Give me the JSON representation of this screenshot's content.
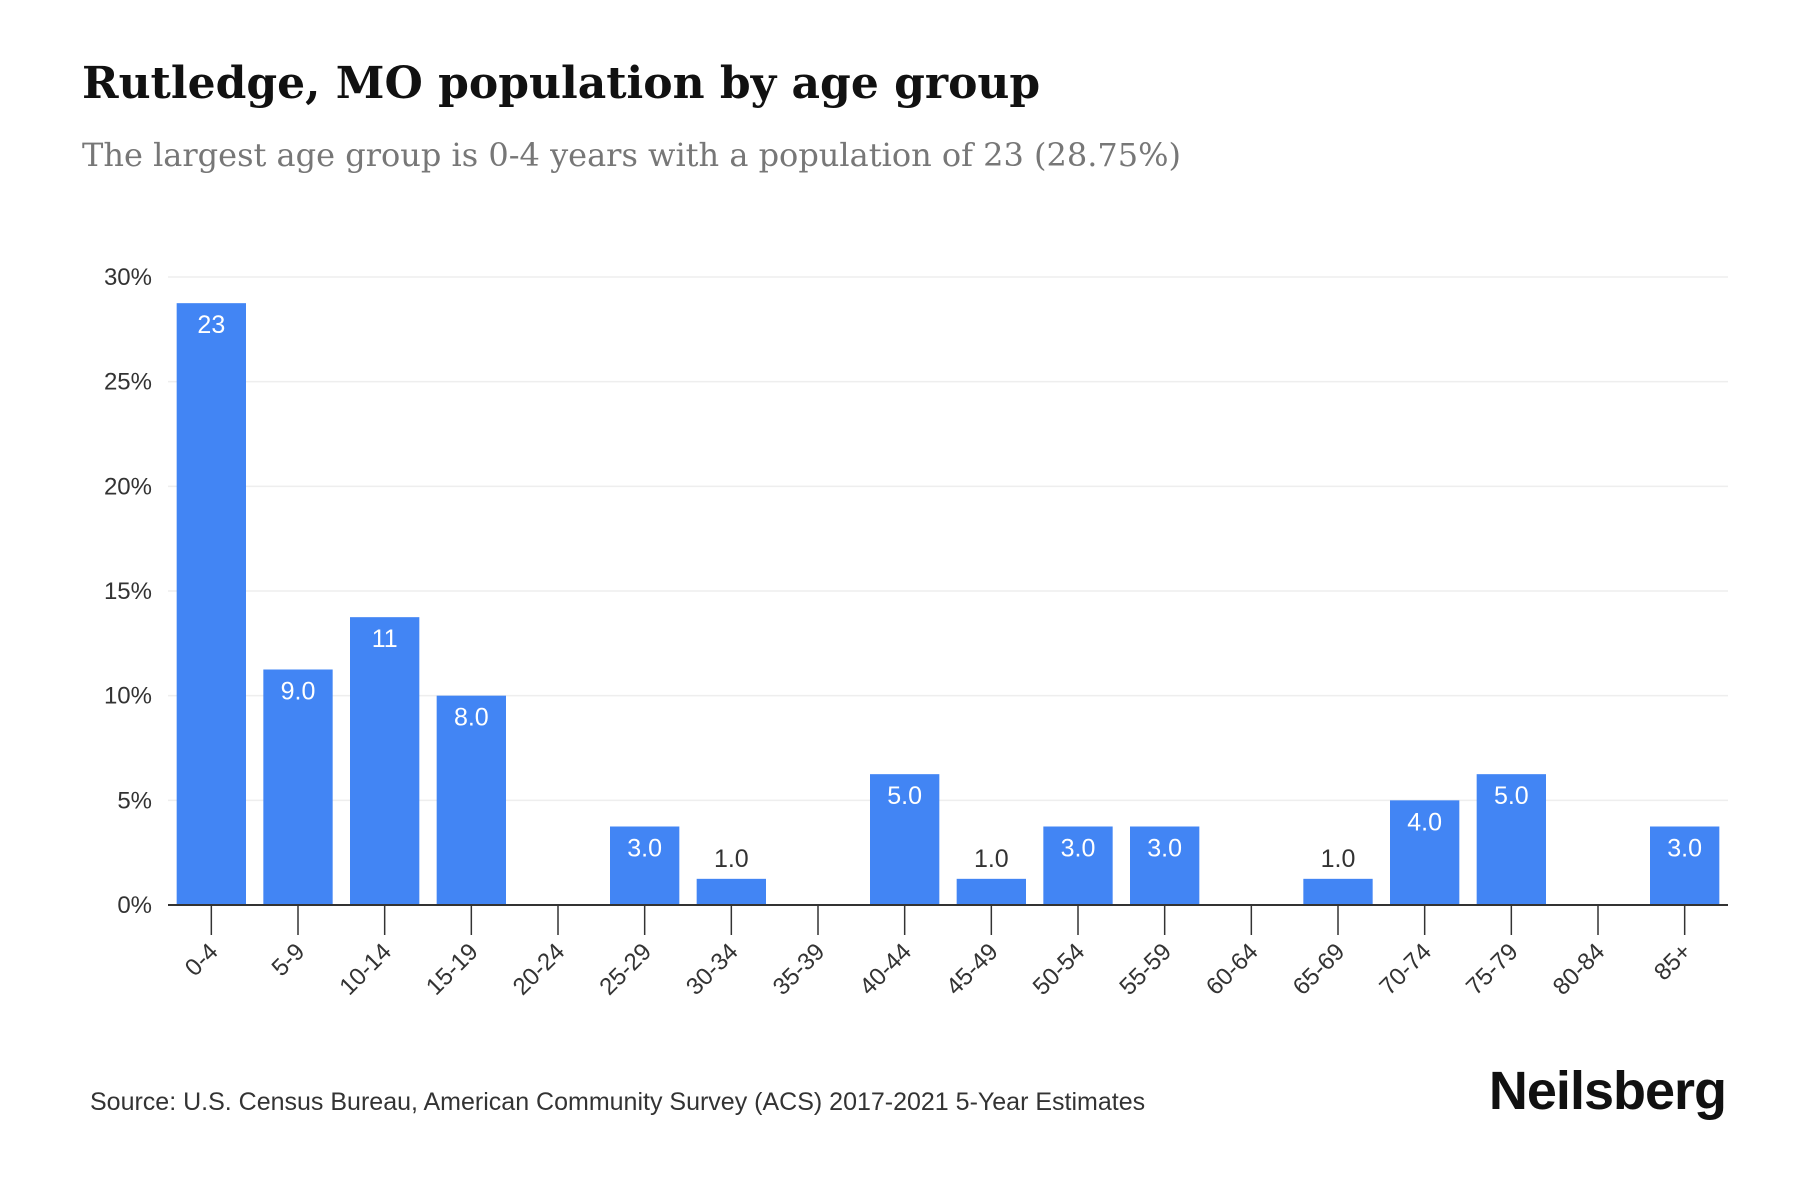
{
  "header": {
    "title": "Rutledge, MO population by age group",
    "subtitle": "The largest age group is 0-4 years with a population of 23 (28.75%)"
  },
  "footer": {
    "source": "Source: U.S. Census Bureau, American Community Survey (ACS) 2017-2021 5-Year Estimates",
    "brand": "Neilsberg"
  },
  "colors": {
    "bar": "#4285f4",
    "label_inside": "#ffffff",
    "label_outside": "#333333",
    "grid": "#eeeeee",
    "axis": "#333333"
  },
  "chart_data": {
    "type": "bar",
    "title": "Rutledge, MO population by age group",
    "xlabel": "",
    "ylabel": "",
    "ylim": [
      0,
      30
    ],
    "yticks": [
      0,
      5,
      10,
      15,
      20,
      25,
      30
    ],
    "ytick_labels": [
      "0%",
      "5%",
      "10%",
      "15%",
      "20%",
      "25%",
      "30%"
    ],
    "grid": true,
    "legend": "none",
    "categories": [
      "0-4",
      "5-9",
      "10-14",
      "15-19",
      "20-24",
      "25-29",
      "30-34",
      "35-39",
      "40-44",
      "45-49",
      "50-54",
      "55-59",
      "60-64",
      "65-69",
      "70-74",
      "75-79",
      "80-84",
      "85+"
    ],
    "percent_values": [
      28.75,
      11.25,
      13.75,
      10.0,
      0,
      3.75,
      1.25,
      0,
      6.25,
      1.25,
      3.75,
      3.75,
      0,
      1.25,
      5.0,
      6.25,
      0,
      3.75
    ],
    "data_labels": [
      "23",
      "9.0",
      "11",
      "8.0",
      "",
      "3.0",
      "1.0",
      "",
      "5.0",
      "1.0",
      "3.0",
      "3.0",
      "",
      "1.0",
      "4.0",
      "5.0",
      "",
      "3.0"
    ]
  }
}
